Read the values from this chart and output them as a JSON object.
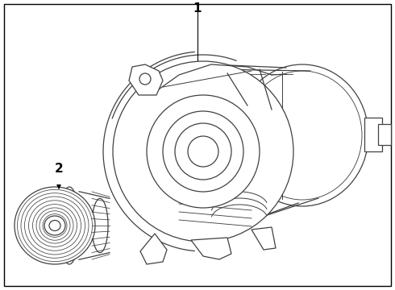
{
  "background_color": "#ffffff",
  "border_color": "#000000",
  "line_color": "#404040",
  "label1": "1",
  "label2": "2",
  "fig_width": 4.9,
  "fig_height": 3.6,
  "dpi": 100
}
